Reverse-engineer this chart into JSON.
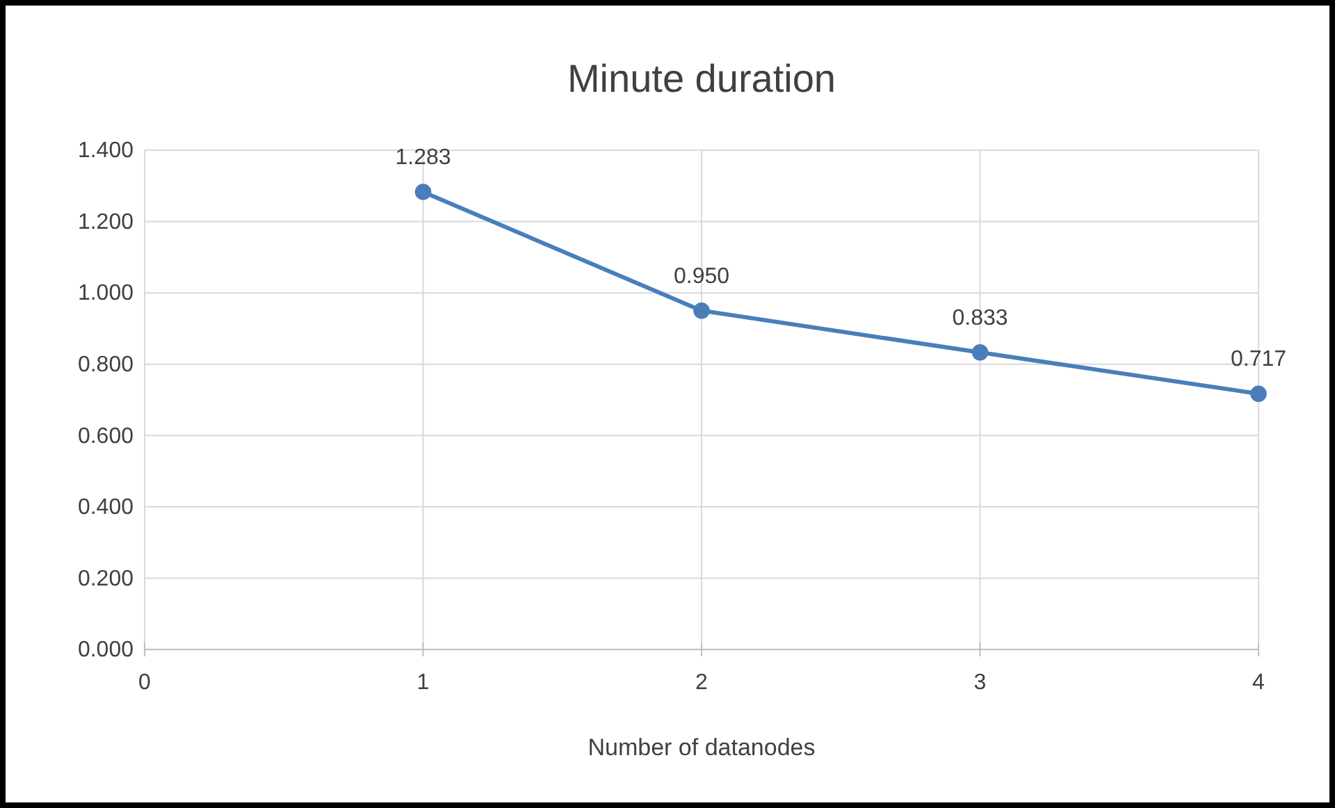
{
  "chart_data": {
    "type": "line",
    "title": "Minute duration",
    "xlabel": "Number of datanodes",
    "x": [
      1,
      2,
      3,
      4
    ],
    "series": [
      {
        "color": "#4a7ebb",
        "values": [
          1.283,
          0.95,
          0.833,
          0.717
        ],
        "value_labels": [
          "1.283",
          "0.950",
          "0.833",
          "0.717"
        ]
      }
    ],
    "xlim": [
      0,
      4
    ],
    "xticks": [
      0,
      1,
      2,
      3,
      4
    ],
    "ylim": [
      0,
      1.4
    ],
    "yticks": [
      {
        "value": 0,
        "label": "0.000"
      },
      {
        "value": 0.2,
        "label": "0.200"
      },
      {
        "value": 0.4,
        "label": "0.400"
      },
      {
        "value": 0.6,
        "label": "0.600"
      },
      {
        "value": 0.8,
        "label": "0.800"
      },
      {
        "value": 1,
        "label": "1.000"
      },
      {
        "value": 1.2,
        "label": "1.200"
      },
      {
        "value": 1.4,
        "label": "1.400"
      }
    ],
    "grid": true,
    "marker": "circle",
    "line_style": "solid"
  }
}
